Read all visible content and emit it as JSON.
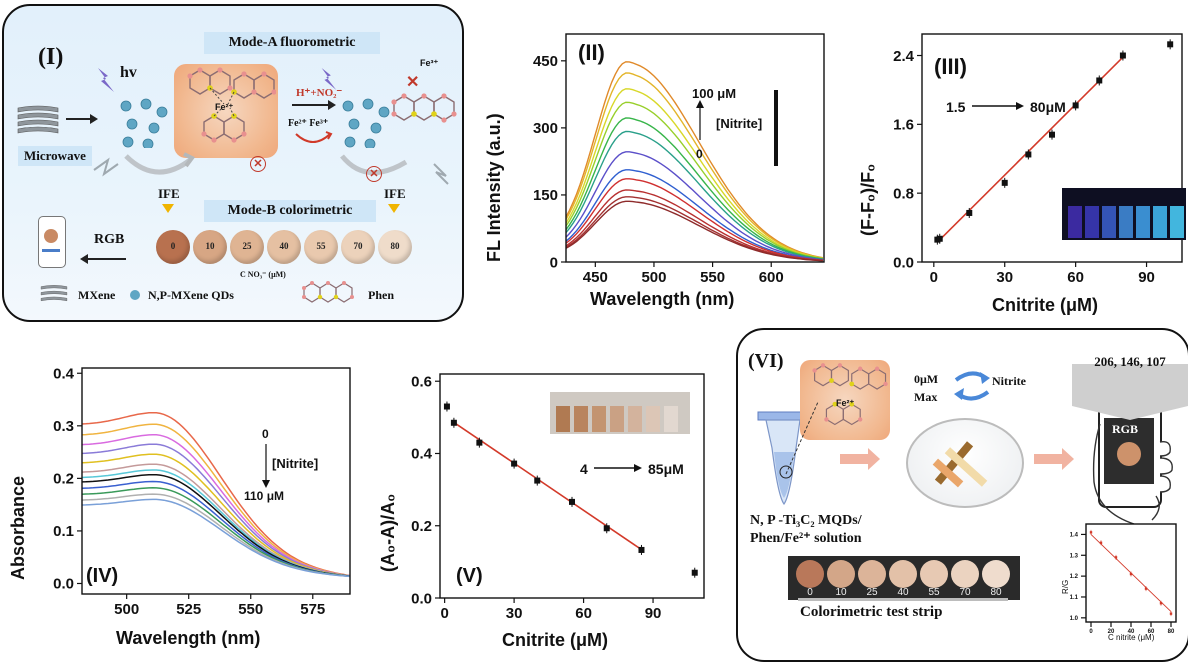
{
  "panel_I": {
    "label": "(I)",
    "mode_a": "Mode-A fluorometric",
    "mode_b": "Mode-B colorimetric",
    "hv": "hv",
    "microwave": "Microwave",
    "reagent": "H⁺+NO₂⁻",
    "redox": "Fe²⁺  Fe³⁺",
    "fe2": "Fe²⁺",
    "fe3": "Fe³⁺",
    "ife_left": "IFE",
    "ife_right": "IFE",
    "rgb": "RGB",
    "conc_unit": "C NO₃⁻ (μM)",
    "dots": [
      {
        "label": "0",
        "color": "#b8714f"
      },
      {
        "label": "10",
        "color": "#d7a684"
      },
      {
        "label": "25",
        "color": "#dfb493"
      },
      {
        "label": "40",
        "color": "#e5c0a2"
      },
      {
        "label": "55",
        "color": "#e9c9ae"
      },
      {
        "label": "70",
        "color": "#ecd2bb"
      },
      {
        "label": "80",
        "color": "#efdcca"
      }
    ],
    "legend": {
      "mxene": "MXene",
      "qds": "N,P-MXene QDs",
      "phen": "Phen"
    }
  },
  "panel_II": {
    "label": "(II)",
    "ylabel": "FL Intensity (a.u.)",
    "xlabel": "Wavelength (nm)",
    "arrow_top": "100  μM",
    "arrow_bottom": "0",
    "arrow_label": "[Nitrite]",
    "xticks": [
      "450",
      "500",
      "550",
      "600"
    ],
    "yticks": [
      "0",
      "150",
      "300",
      "450"
    ]
  },
  "panel_III": {
    "label": "(III)",
    "ylabel": "(F-F₀)/F₀",
    "xlabel": "Cnitrite (μM)",
    "range_from": "1.5",
    "range_to": "80μM",
    "xticks": [
      "0",
      "30",
      "60",
      "90"
    ],
    "yticks": [
      "0.0",
      "0.8",
      "1.6",
      "2.4"
    ]
  },
  "panel_IV": {
    "label": "(IV)",
    "ylabel": "Absorbance",
    "xlabel": "Wavelength (nm)",
    "arrow_top": "0",
    "arrow_bottom": "110 μM",
    "arrow_label": "[Nitrite]",
    "xticks": [
      "500",
      "525",
      "550",
      "575"
    ],
    "yticks": [
      "0.0",
      "0.1",
      "0.2",
      "0.3",
      "0.4"
    ]
  },
  "panel_V": {
    "label": "(V)",
    "ylabel": "(A₀-A)/A₀",
    "xlabel": "Cnitrite (μM)",
    "range_from": "4",
    "range_to": "85μM",
    "xticks": [
      "0",
      "30",
      "60",
      "90"
    ],
    "yticks": [
      "0.0",
      "0.2",
      "0.4",
      "0.6"
    ]
  },
  "panel_VI": {
    "label": "(VI)",
    "rgb_values": "206, 146, 107",
    "rgb": "RGB",
    "state_0": "0μM",
    "state_max": "Max",
    "nitrite": "Nitrite",
    "fe2": "Fe²⁺",
    "solution": "N, P -Ti₃C₂ MQDs/ Phen/Fe²⁺ solution",
    "strip_caption": "Colorimetric test strip",
    "strip": [
      {
        "label": "0",
        "color": "#b9785a"
      },
      {
        "label": "10",
        "color": "#d3a688"
      },
      {
        "label": "25",
        "color": "#dcb499"
      },
      {
        "label": "40",
        "color": "#e3c1a8"
      },
      {
        "label": "55",
        "color": "#e7c9b3"
      },
      {
        "label": "70",
        "color": "#ebd3c0"
      },
      {
        "label": "80",
        "color": "#efdccd"
      }
    ],
    "mini_ylabel": "R/G",
    "mini_xlabel": "C nitrite (μM)",
    "mini_xticks": [
      "0",
      "20",
      "40",
      "60",
      "80"
    ],
    "mini_yticks": [
      "1.0",
      "1.1",
      "1.2",
      "1.3",
      "1.4"
    ]
  },
  "chart_data": [
    {
      "type": "line",
      "panel": "II",
      "xlabel": "Wavelength (nm)",
      "ylabel": "FL Intensity (a.u.)",
      "xlim": [
        425,
        645
      ],
      "ylim": [
        0,
        510
      ],
      "peak_x": 478,
      "peaks": [
        445,
        420,
        385,
        355,
        320,
        290,
        245,
        205,
        185,
        160,
        145,
        135
      ],
      "colors": [
        "#e08a2a",
        "#e3b52a",
        "#d8d829",
        "#98cf2a",
        "#38b54a",
        "#2aa08a",
        "#5b4fc9",
        "#2f5fd0",
        "#d03030",
        "#b83030",
        "#a23030",
        "#8e2b2b"
      ]
    },
    {
      "type": "scatter",
      "panel": "III",
      "xlabel": "Cnitrite (μM)",
      "ylabel": "(F-F₀)/F₀",
      "xlim": [
        -5,
        105
      ],
      "ylim": [
        0,
        2.65
      ],
      "x": [
        1.5,
        2.5,
        15,
        30,
        40,
        50,
        60,
        70,
        80,
        100
      ],
      "y": [
        0.26,
        0.27,
        0.57,
        0.92,
        1.25,
        1.48,
        1.82,
        2.11,
        2.4,
        2.53
      ],
      "fit": [
        [
          1.5,
          0.23
        ],
        [
          80,
          2.38
        ]
      ]
    },
    {
      "type": "line",
      "panel": "IV",
      "xlabel": "Wavelength (nm)",
      "ylabel": "Absorbance",
      "xlim": [
        482,
        590
      ],
      "ylim": [
        -0.02,
        0.41
      ],
      "peaks": [
        0.325,
        0.303,
        0.283,
        0.265,
        0.246,
        0.227,
        0.216,
        0.207,
        0.194,
        0.182,
        0.17,
        0.16
      ],
      "colors": [
        "#e8684a",
        "#f0b440",
        "#d96be0",
        "#8a7bd8",
        "#e0c020",
        "#c49a9a",
        "#58c8d8",
        "#111111",
        "#3a60d0",
        "#3a9a5a",
        "#b0b0b0",
        "#7aa0d8"
      ]
    },
    {
      "type": "scatter",
      "panel": "V",
      "xlabel": "Cnitrite (μM)",
      "ylabel": "(A₀-A)/A₀",
      "xlim": [
        -2,
        112
      ],
      "ylim": [
        0,
        0.62
      ],
      "x": [
        1,
        4,
        15,
        30,
        40,
        55,
        70,
        85,
        108
      ],
      "y": [
        0.53,
        0.485,
        0.43,
        0.372,
        0.325,
        0.266,
        0.193,
        0.133,
        0.07
      ],
      "fit": [
        [
          4,
          0.486
        ],
        [
          85,
          0.134
        ]
      ]
    },
    {
      "type": "scatter",
      "panel": "VI-inset",
      "xlabel": "C nitrite (μM)",
      "ylabel": "R/G",
      "xlim": [
        -5,
        85
      ],
      "ylim": [
        0.98,
        1.45
      ],
      "x": [
        0,
        10,
        25,
        40,
        55,
        70,
        80
      ],
      "y": [
        1.41,
        1.36,
        1.29,
        1.21,
        1.14,
        1.07,
        1.02
      ],
      "fit": [
        [
          0,
          1.4
        ],
        [
          80,
          1.03
        ]
      ]
    }
  ]
}
